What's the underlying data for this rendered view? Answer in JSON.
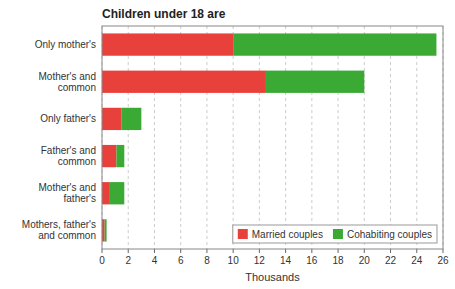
{
  "chart_data": {
    "type": "bar",
    "orientation": "horizontal",
    "stacked": true,
    "title": "Children under 18 are",
    "categories": [
      "Only mother's",
      "Mother's and\ncommon",
      "Only father's",
      "Father's and\ncommon",
      "Mother's and\nfather's",
      "Mothers, father's\nand common"
    ],
    "series": [
      {
        "name": "Married couples",
        "color": "#e8413c",
        "values": [
          10.0,
          12.5,
          1.5,
          1.1,
          0.6,
          0.2
        ]
      },
      {
        "name": "Cohabiting couples",
        "color": "#3aaa35",
        "values": [
          15.5,
          7.5,
          1.5,
          0.6,
          1.1,
          0.15
        ]
      }
    ],
    "xlabel": "Thousands",
    "xlim": [
      0,
      26
    ],
    "xticks": [
      0,
      2,
      4,
      6,
      8,
      10,
      12,
      14,
      16,
      18,
      20,
      22,
      24,
      26
    ],
    "grid": true,
    "legend": "lower right"
  }
}
